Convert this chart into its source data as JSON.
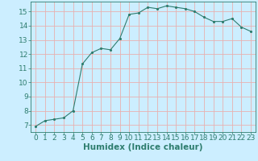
{
  "x": [
    0,
    1,
    2,
    3,
    4,
    5,
    6,
    7,
    8,
    9,
    10,
    11,
    12,
    13,
    14,
    15,
    16,
    17,
    18,
    19,
    20,
    21,
    22,
    23
  ],
  "y": [
    6.9,
    7.3,
    7.4,
    7.5,
    8.0,
    11.3,
    12.1,
    12.4,
    12.3,
    13.1,
    14.8,
    14.9,
    15.3,
    15.2,
    15.4,
    15.3,
    15.2,
    15.0,
    14.6,
    14.3,
    14.3,
    14.5,
    13.9,
    13.6
  ],
  "xlabel": "Humidex (Indice chaleur)",
  "xlim": [
    -0.5,
    23.5
  ],
  "ylim": [
    6.5,
    15.7
  ],
  "yticks": [
    7,
    8,
    9,
    10,
    11,
    12,
    13,
    14,
    15
  ],
  "xticks": [
    0,
    1,
    2,
    3,
    4,
    5,
    6,
    7,
    8,
    9,
    10,
    11,
    12,
    13,
    14,
    15,
    16,
    17,
    18,
    19,
    20,
    21,
    22,
    23
  ],
  "line_color": "#2e7d6e",
  "marker_color": "#2e7d6e",
  "bg_color": "#cceeff",
  "grid_color": "#e8b0b0",
  "font_color": "#2e7d6e",
  "tick_fontsize": 6.5,
  "xlabel_fontsize": 7.5
}
